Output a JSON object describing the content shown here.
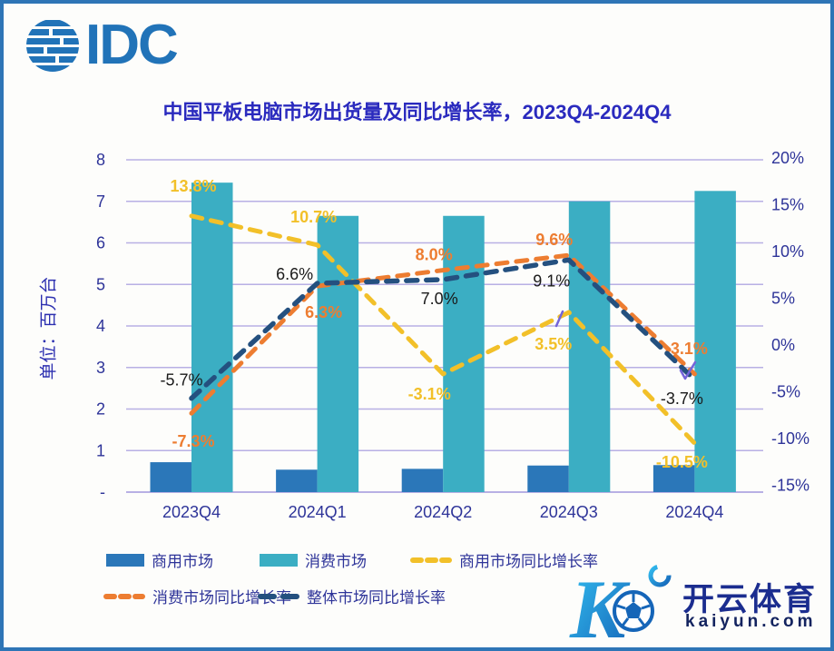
{
  "logo": {
    "text": "IDC"
  },
  "title": "中国平板电脑市场出货量及同比增长率，2023Q4-2024Q4",
  "y_axis": {
    "label": "单位：百万台",
    "ticks": [
      "8",
      "7",
      "6",
      "5",
      "4",
      "3",
      "2",
      "1",
      "-"
    ]
  },
  "y2_axis": {
    "ticks": [
      "20%",
      "15%",
      "10%",
      "5%",
      "0%",
      "-5%",
      "-10%",
      "-15%"
    ]
  },
  "chart_data": {
    "type": "bar+line",
    "categories": [
      "2023Q4",
      "2024Q1",
      "2024Q2",
      "2024Q3",
      "2024Q4"
    ],
    "left_axis": {
      "range": [
        0,
        8
      ],
      "label": "单位：百万台",
      "grid": true
    },
    "right_axis": {
      "range": [
        -15,
        20
      ],
      "tick_step": 5
    },
    "legend_position": "bottom",
    "series": [
      {
        "name": "商用市场",
        "type": "bar",
        "axis": "left",
        "color": "#2b77b9",
        "values": [
          0.72,
          0.54,
          0.56,
          0.64,
          0.65
        ]
      },
      {
        "name": "消费市场",
        "type": "bar",
        "axis": "left",
        "color": "#3baec3",
        "values": [
          7.45,
          6.65,
          6.65,
          7.0,
          7.25
        ]
      },
      {
        "name": "商用市场同比增长率",
        "type": "line",
        "axis": "right",
        "color": "#f2c029",
        "values": [
          13.8,
          10.7,
          -3.1,
          3.5,
          -10.5
        ],
        "labels": [
          "13.8%",
          "10.7%",
          "-3.1%",
          "3.5%",
          "-10.5%"
        ]
      },
      {
        "name": "消费市场同比增长率",
        "type": "line",
        "axis": "right",
        "color": "#ed7d31",
        "values": [
          -7.3,
          6.3,
          8.0,
          9.6,
          -3.1
        ],
        "labels": [
          "-7.3%",
          "6.3%",
          "8.0%",
          "9.6%",
          "-3.1%"
        ]
      },
      {
        "name": "整体市场同比增长率",
        "type": "line",
        "axis": "right",
        "color": "#24507f",
        "label_color": "#1a1a1a",
        "values": [
          -5.7,
          6.6,
          7.0,
          9.1,
          -3.7
        ],
        "labels": [
          "-5.7%",
          "6.6%",
          "7.0%",
          "9.1%",
          "-3.7%"
        ]
      }
    ]
  },
  "legend": {
    "items": [
      {
        "label": "商用市场",
        "swatch": "bar",
        "color": "#2b77b9"
      },
      {
        "label": "消费市场",
        "swatch": "bar",
        "color": "#3baec3"
      },
      {
        "label": "商用市场同比增长率",
        "swatch": "dash",
        "color": "#f2c029"
      },
      {
        "label": "消费市场同比增长率",
        "swatch": "dash",
        "color": "#ed7d31"
      },
      {
        "label": "整体市场同比增长率",
        "swatch": "longdash",
        "color": "#24507f"
      }
    ]
  },
  "decorations": [
    {
      "name": "purple-slash-mark",
      "color": "#7464d9"
    },
    {
      "name": "purple-check-mark",
      "color": "#7464d9"
    }
  ],
  "watermark": {
    "cn": "开云体育",
    "domain": "kaiyun.com"
  },
  "colors": {
    "border": "#2e75b6",
    "title": "#2a2abe",
    "axis_text": "#2e3499",
    "gridline": "#b8b0e4",
    "idc_blue": "#2173b8"
  }
}
